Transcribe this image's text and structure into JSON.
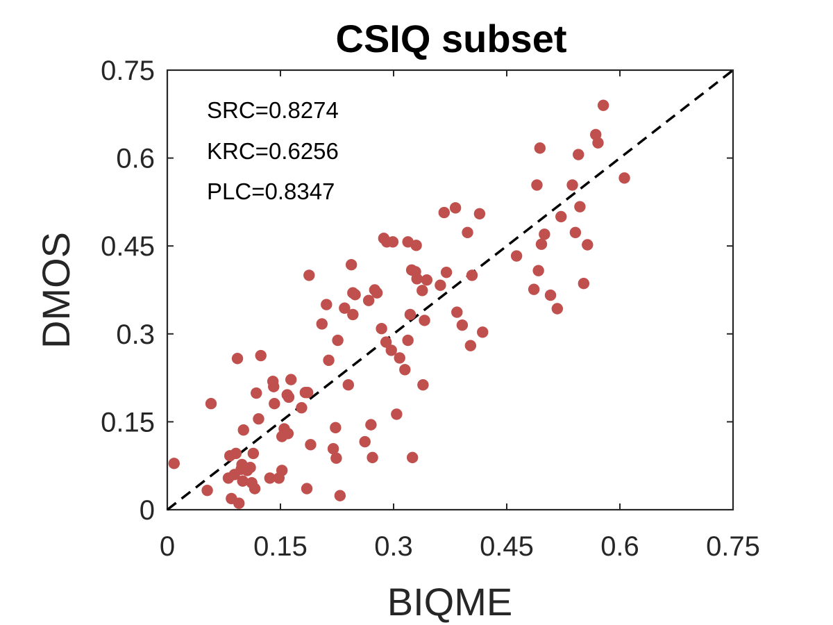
{
  "chart_data": {
    "type": "scatter",
    "title": "CSIQ subset",
    "xlabel": "BIQME",
    "ylabel": "DMOS",
    "xlim": [
      0,
      0.75
    ],
    "ylim": [
      0,
      0.75
    ],
    "xticks": [
      0,
      0.15,
      0.3,
      0.45,
      0.6,
      0.75
    ],
    "yticks": [
      0,
      0.15,
      0.3,
      0.45,
      0.6,
      0.75
    ],
    "xtick_labels": [
      "0",
      "0.15",
      "0.3",
      "0.45",
      "0.6",
      "0.75"
    ],
    "ytick_labels": [
      "0",
      "0.15",
      "0.3",
      "0.45",
      "0.6",
      "0.75"
    ],
    "reference_line": {
      "from": [
        0,
        0
      ],
      "to": [
        0.75,
        0.75
      ],
      "style": "dashed",
      "color": "#000000"
    },
    "annotations": [
      "SRC=0.8274",
      "KRC=0.6256",
      "PLC=0.8347"
    ],
    "marker_color": "#C0504D",
    "points": [
      [
        0.009,
        0.079
      ],
      [
        0.053,
        0.033
      ],
      [
        0.058,
        0.181
      ],
      [
        0.081,
        0.054
      ],
      [
        0.083,
        0.092
      ],
      [
        0.085,
        0.019
      ],
      [
        0.089,
        0.06
      ],
      [
        0.091,
        0.096
      ],
      [
        0.093,
        0.258
      ],
      [
        0.095,
        0.011
      ],
      [
        0.098,
        0.069
      ],
      [
        0.099,
        0.077
      ],
      [
        0.1,
        0.049
      ],
      [
        0.101,
        0.136
      ],
      [
        0.106,
        0.067
      ],
      [
        0.11,
        0.072
      ],
      [
        0.112,
        0.046
      ],
      [
        0.114,
        0.096
      ],
      [
        0.116,
        0.036
      ],
      [
        0.118,
        0.199
      ],
      [
        0.121,
        0.155
      ],
      [
        0.124,
        0.263
      ],
      [
        0.136,
        0.054
      ],
      [
        0.14,
        0.219
      ],
      [
        0.141,
        0.21
      ],
      [
        0.142,
        0.181
      ],
      [
        0.148,
        0.054
      ],
      [
        0.152,
        0.125
      ],
      [
        0.152,
        0.067
      ],
      [
        0.155,
        0.138
      ],
      [
        0.159,
        0.196
      ],
      [
        0.16,
        0.13
      ],
      [
        0.161,
        0.192
      ],
      [
        0.164,
        0.222
      ],
      [
        0.178,
        0.174
      ],
      [
        0.183,
        0.2
      ],
      [
        0.185,
        0.036
      ],
      [
        0.186,
        0.2
      ],
      [
        0.188,
        0.4
      ],
      [
        0.19,
        0.111
      ],
      [
        0.205,
        0.317
      ],
      [
        0.211,
        0.35
      ],
      [
        0.214,
        0.255
      ],
      [
        0.22,
        0.104
      ],
      [
        0.223,
        0.14
      ],
      [
        0.224,
        0.088
      ],
      [
        0.226,
        0.289
      ],
      [
        0.229,
        0.024
      ],
      [
        0.235,
        0.344
      ],
      [
        0.24,
        0.213
      ],
      [
        0.244,
        0.418
      ],
      [
        0.246,
        0.37
      ],
      [
        0.246,
        0.333
      ],
      [
        0.249,
        0.367
      ],
      [
        0.262,
        0.116
      ],
      [
        0.267,
        0.357
      ],
      [
        0.27,
        0.145
      ],
      [
        0.272,
        0.089
      ],
      [
        0.275,
        0.375
      ],
      [
        0.278,
        0.37
      ],
      [
        0.284,
        0.309
      ],
      [
        0.287,
        0.463
      ],
      [
        0.29,
        0.286
      ],
      [
        0.291,
        0.457
      ],
      [
        0.297,
        0.272
      ],
      [
        0.299,
        0.457
      ],
      [
        0.304,
        0.163
      ],
      [
        0.308,
        0.259
      ],
      [
        0.315,
        0.239
      ],
      [
        0.319,
        0.289
      ],
      [
        0.319,
        0.457
      ],
      [
        0.322,
        0.333
      ],
      [
        0.324,
        0.409
      ],
      [
        0.325,
        0.089
      ],
      [
        0.329,
        0.406
      ],
      [
        0.33,
        0.451
      ],
      [
        0.331,
        0.394
      ],
      [
        0.338,
        0.374
      ],
      [
        0.339,
        0.213
      ],
      [
        0.341,
        0.323
      ],
      [
        0.344,
        0.392
      ],
      [
        0.362,
        0.383
      ],
      [
        0.367,
        0.507
      ],
      [
        0.37,
        0.405
      ],
      [
        0.382,
        0.515
      ],
      [
        0.384,
        0.337
      ],
      [
        0.391,
        0.315
      ],
      [
        0.398,
        0.473
      ],
      [
        0.402,
        0.28
      ],
      [
        0.404,
        0.4
      ],
      [
        0.414,
        0.505
      ],
      [
        0.418,
        0.303
      ],
      [
        0.463,
        0.433
      ],
      [
        0.486,
        0.376
      ],
      [
        0.49,
        0.554
      ],
      [
        0.492,
        0.408
      ],
      [
        0.494,
        0.617
      ],
      [
        0.496,
        0.453
      ],
      [
        0.5,
        0.47
      ],
      [
        0.508,
        0.366
      ],
      [
        0.517,
        0.343
      ],
      [
        0.522,
        0.5
      ],
      [
        0.537,
        0.554
      ],
      [
        0.541,
        0.473
      ],
      [
        0.545,
        0.606
      ],
      [
        0.547,
        0.517
      ],
      [
        0.552,
        0.386
      ],
      [
        0.557,
        0.452
      ],
      [
        0.568,
        0.64
      ],
      [
        0.571,
        0.626
      ],
      [
        0.578,
        0.69
      ],
      [
        0.606,
        0.566
      ]
    ]
  }
}
